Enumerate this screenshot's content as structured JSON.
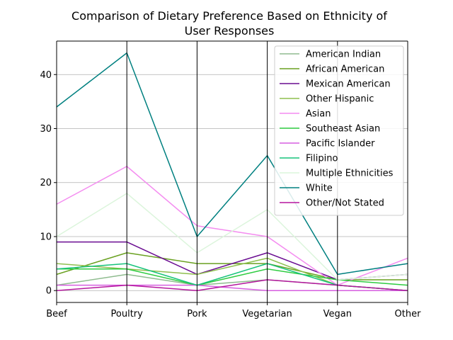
{
  "chart_data": {
    "type": "line",
    "subtype": "parallel-coordinates",
    "title_lines": [
      "Comparison of Dietary Preference Based on Ethnicity of",
      "User Responses"
    ],
    "categories": [
      "Beef",
      "Poultry",
      "Pork",
      "Vegetarian",
      "Vegan",
      "Other"
    ],
    "ylim": [
      -2.2,
      46.2
    ],
    "yticks": [
      0,
      10,
      20,
      30,
      40
    ],
    "grid": true,
    "legend_position": "top-right",
    "series": [
      {
        "name": "American Indian",
        "color": "#8fbc8f",
        "values": [
          1,
          3,
          1,
          2,
          1,
          0
        ]
      },
      {
        "name": "African American",
        "color": "#6aa121",
        "values": [
          3,
          7,
          5,
          5,
          2,
          2
        ]
      },
      {
        "name": "Mexican American",
        "color": "#6a0d91",
        "values": [
          9,
          9,
          3,
          7,
          2,
          3
        ]
      },
      {
        "name": "Other Hispanic",
        "color": "#8fbf4f",
        "values": [
          5,
          4,
          3,
          6,
          1,
          0
        ]
      },
      {
        "name": "Asian",
        "color": "#f48cf0",
        "values": [
          16,
          23,
          12,
          10,
          1,
          6
        ]
      },
      {
        "name": "Southeast Asian",
        "color": "#2ecc40",
        "values": [
          4,
          4,
          1,
          4,
          2,
          1
        ]
      },
      {
        "name": "Pacific Islander",
        "color": "#d65ee0",
        "values": [
          1,
          1,
          1,
          0,
          0,
          0
        ]
      },
      {
        "name": "Filipino",
        "color": "#17c37b",
        "values": [
          4,
          5,
          1,
          5,
          1,
          0
        ]
      },
      {
        "name": "Multiple Ethnicities",
        "color": "#dcf5dc",
        "values": [
          10,
          18,
          7,
          15,
          2,
          3
        ]
      },
      {
        "name": "White",
        "color": "#008080",
        "values": [
          34,
          44,
          10,
          25,
          3,
          5
        ]
      },
      {
        "name": "Other/Not Stated",
        "color": "#b5179e",
        "values": [
          0,
          1,
          0,
          2,
          1,
          0
        ]
      }
    ]
  }
}
